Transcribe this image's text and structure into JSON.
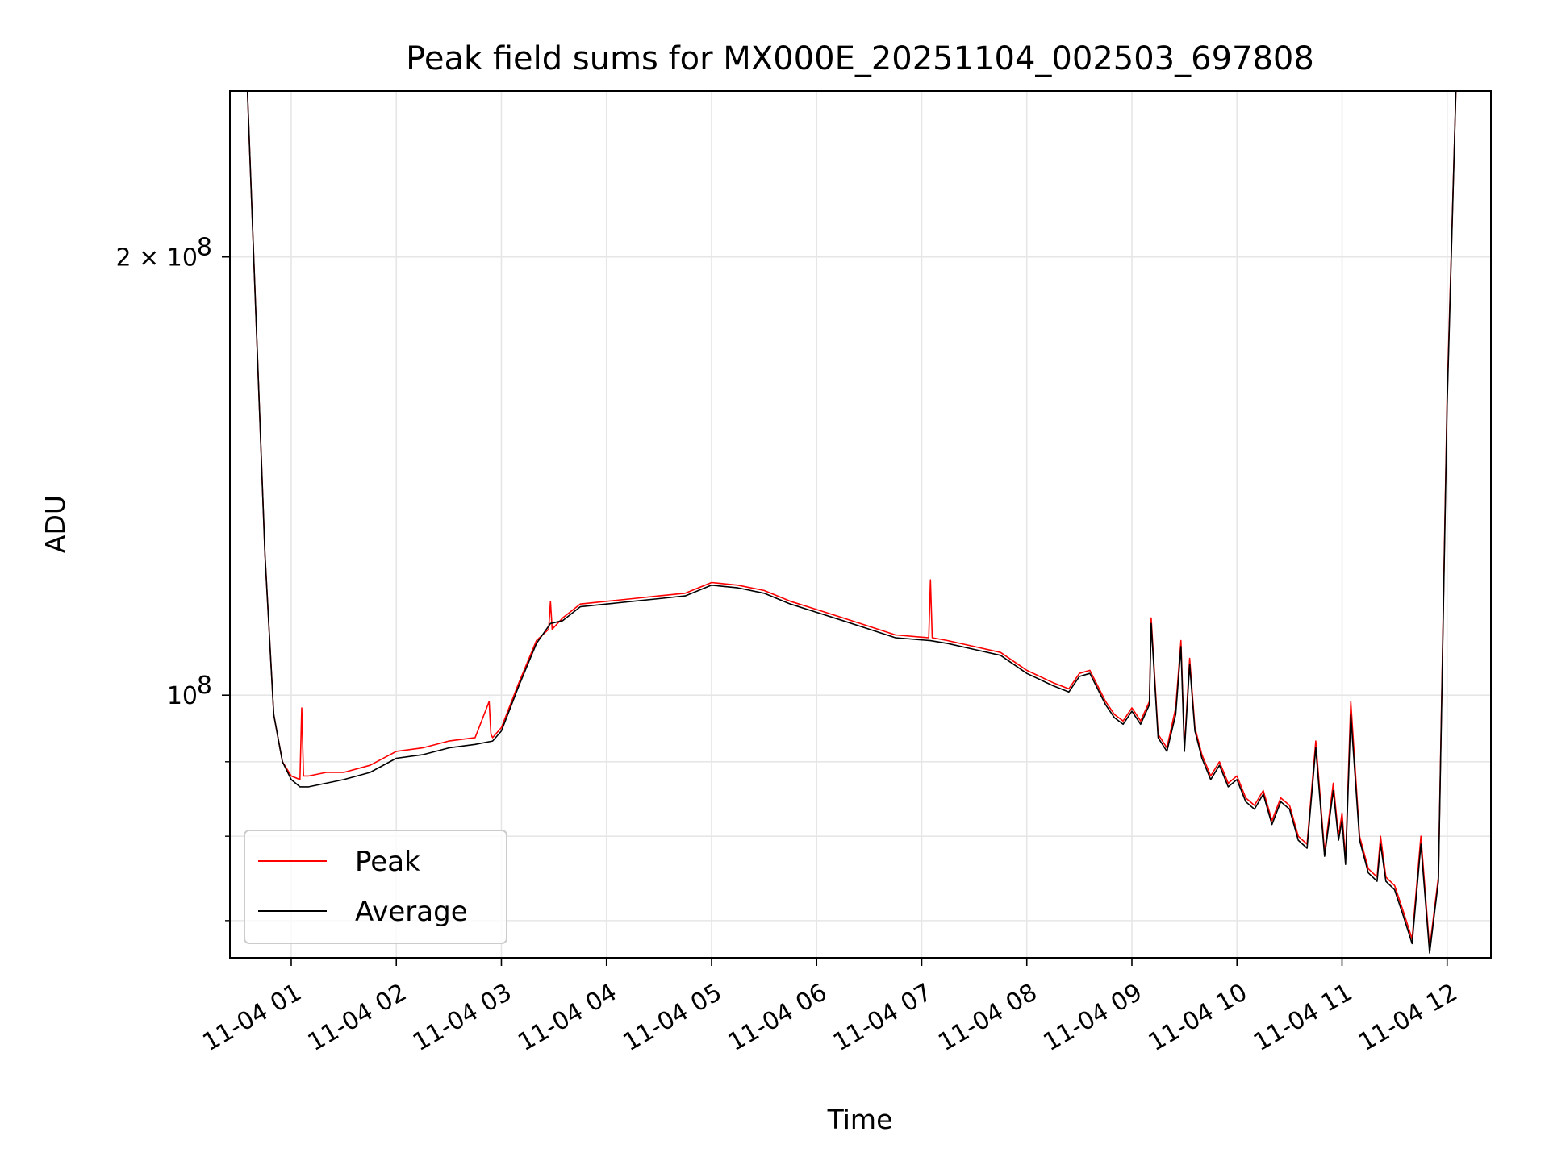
{
  "chart_data": {
    "type": "line",
    "title": "Peak field sums for MX000E_20251104_002503_697808",
    "xlabel": "Time",
    "ylabel": "ADU",
    "y_scale": "log",
    "ylim": [
      66000000,
      260000000
    ],
    "y_major_ticks": [
      {
        "value": 100000000,
        "base": "10",
        "exp": "8"
      },
      {
        "value": 200000000,
        "base": "2 × 10",
        "exp": "8"
      }
    ],
    "y_minor_ticks": [
      70000000,
      80000000,
      90000000
    ],
    "xlim": [
      "2025-11-04 00:25",
      "2025-11-04 12:25"
    ],
    "x_ticks": [
      {
        "value": "2025-11-04 01:00",
        "label": "11-04 01"
      },
      {
        "value": "2025-11-04 02:00",
        "label": "11-04 02"
      },
      {
        "value": "2025-11-04 03:00",
        "label": "11-04 03"
      },
      {
        "value": "2025-11-04 04:00",
        "label": "11-04 04"
      },
      {
        "value": "2025-11-04 05:00",
        "label": "11-04 05"
      },
      {
        "value": "2025-11-04 06:00",
        "label": "11-04 06"
      },
      {
        "value": "2025-11-04 07:00",
        "label": "11-04 07"
      },
      {
        "value": "2025-11-04 08:00",
        "label": "11-04 08"
      },
      {
        "value": "2025-11-04 09:00",
        "label": "11-04 09"
      },
      {
        "value": "2025-11-04 10:00",
        "label": "11-04 10"
      },
      {
        "value": "2025-11-04 11:00",
        "label": "11-04 11"
      },
      {
        "value": "2025-11-04 12:00",
        "label": "11-04 12"
      }
    ],
    "grid": true,
    "legend_position": "lower-left",
    "series": [
      {
        "name": "Peak",
        "color": "#ff0000",
        "x": [
          "2025-11-04 00:35",
          "2025-11-04 00:40",
          "2025-11-04 00:45",
          "2025-11-04 00:50",
          "2025-11-04 00:55",
          "2025-11-04 01:00",
          "2025-11-04 01:05",
          "2025-11-04 01:06",
          "2025-11-04 01:07",
          "2025-11-04 01:10",
          "2025-11-04 01:20",
          "2025-11-04 01:30",
          "2025-11-04 01:45",
          "2025-11-04 02:00",
          "2025-11-04 02:15",
          "2025-11-04 02:30",
          "2025-11-04 02:45",
          "2025-11-04 02:53",
          "2025-11-04 02:54",
          "2025-11-04 02:55",
          "2025-11-04 03:00",
          "2025-11-04 03:10",
          "2025-11-04 03:20",
          "2025-11-04 03:27",
          "2025-11-04 03:28",
          "2025-11-04 03:29",
          "2025-11-04 03:35",
          "2025-11-04 03:45",
          "2025-11-04 04:00",
          "2025-11-04 04:15",
          "2025-11-04 04:30",
          "2025-11-04 04:45",
          "2025-11-04 05:00",
          "2025-11-04 05:15",
          "2025-11-04 05:30",
          "2025-11-04 05:45",
          "2025-11-04 06:00",
          "2025-11-04 06:15",
          "2025-11-04 06:30",
          "2025-11-04 06:45",
          "2025-11-04 07:04",
          "2025-11-04 07:05",
          "2025-11-04 07:06",
          "2025-11-04 07:15",
          "2025-11-04 07:30",
          "2025-11-04 07:45",
          "2025-11-04 08:00",
          "2025-11-04 08:15",
          "2025-11-04 08:24",
          "2025-11-04 08:30",
          "2025-11-04 08:36",
          "2025-11-04 08:45",
          "2025-11-04 08:50",
          "2025-11-04 08:55",
          "2025-11-04 09:00",
          "2025-11-04 09:05",
          "2025-11-04 09:10",
          "2025-11-04 09:11",
          "2025-11-04 09:15",
          "2025-11-04 09:20",
          "2025-11-04 09:25",
          "2025-11-04 09:28",
          "2025-11-04 09:30",
          "2025-11-04 09:33",
          "2025-11-04 09:36",
          "2025-11-04 09:40",
          "2025-11-04 09:45",
          "2025-11-04 09:50",
          "2025-11-04 09:55",
          "2025-11-04 10:00",
          "2025-11-04 10:05",
          "2025-11-04 10:10",
          "2025-11-04 10:15",
          "2025-11-04 10:20",
          "2025-11-04 10:25",
          "2025-11-04 10:30",
          "2025-11-04 10:35",
          "2025-11-04 10:40",
          "2025-11-04 10:45",
          "2025-11-04 10:50",
          "2025-11-04 10:55",
          "2025-11-04 10:58",
          "2025-11-04 11:00",
          "2025-11-04 11:02",
          "2025-11-04 11:05",
          "2025-11-04 11:10",
          "2025-11-04 11:15",
          "2025-11-04 11:20",
          "2025-11-04 11:22",
          "2025-11-04 11:25",
          "2025-11-04 11:30",
          "2025-11-04 11:35",
          "2025-11-04 11:40",
          "2025-11-04 11:45",
          "2025-11-04 11:50",
          "2025-11-04 11:55",
          "2025-11-04 12:00",
          "2025-11-04 12:05"
        ],
        "y": [
          260000000,
          180000000,
          125000000,
          97000000,
          90000000,
          88000000,
          87500000,
          98000000,
          88000000,
          88000000,
          88500000,
          88500000,
          89500000,
          91500000,
          92000000,
          93000000,
          93500000,
          99000000,
          94000000,
          93500000,
          95000000,
          102000000,
          109000000,
          111000000,
          116000000,
          111000000,
          113000000,
          115500000,
          116000000,
          116500000,
          117000000,
          117500000,
          119500000,
          119000000,
          118000000,
          116000000,
          114500000,
          113000000,
          111500000,
          110000000,
          109500000,
          120000000,
          109500000,
          109000000,
          108000000,
          107000000,
          104000000,
          102000000,
          101000000,
          103500000,
          104000000,
          99000000,
          97000000,
          96000000,
          98000000,
          96000000,
          99000000,
          113000000,
          94000000,
          92000000,
          98000000,
          109000000,
          92000000,
          106000000,
          95000000,
          91000000,
          88000000,
          90000000,
          87000000,
          88000000,
          85000000,
          84000000,
          86000000,
          82000000,
          85000000,
          84000000,
          80000000,
          79000000,
          93000000,
          78000000,
          87000000,
          80000000,
          83000000,
          77000000,
          99000000,
          80000000,
          76000000,
          75000000,
          80000000,
          75000000,
          74000000,
          71000000,
          68000000,
          80000000,
          67000000,
          75000000,
          160000000,
          260000000
        ]
      },
      {
        "name": "Average",
        "color": "#000000",
        "x": [
          "2025-11-04 00:35",
          "2025-11-04 00:40",
          "2025-11-04 00:45",
          "2025-11-04 00:50",
          "2025-11-04 00:55",
          "2025-11-04 01:00",
          "2025-11-04 01:05",
          "2025-11-04 01:10",
          "2025-11-04 01:20",
          "2025-11-04 01:30",
          "2025-11-04 01:45",
          "2025-11-04 02:00",
          "2025-11-04 02:15",
          "2025-11-04 02:30",
          "2025-11-04 02:45",
          "2025-11-04 02:55",
          "2025-11-04 03:00",
          "2025-11-04 03:10",
          "2025-11-04 03:20",
          "2025-11-04 03:28",
          "2025-11-04 03:35",
          "2025-11-04 03:45",
          "2025-11-04 04:00",
          "2025-11-04 04:15",
          "2025-11-04 04:30",
          "2025-11-04 04:45",
          "2025-11-04 05:00",
          "2025-11-04 05:15",
          "2025-11-04 05:30",
          "2025-11-04 05:45",
          "2025-11-04 06:00",
          "2025-11-04 06:15",
          "2025-11-04 06:30",
          "2025-11-04 06:45",
          "2025-11-04 07:05",
          "2025-11-04 07:15",
          "2025-11-04 07:30",
          "2025-11-04 07:45",
          "2025-11-04 08:00",
          "2025-11-04 08:15",
          "2025-11-04 08:24",
          "2025-11-04 08:30",
          "2025-11-04 08:36",
          "2025-11-04 08:45",
          "2025-11-04 08:50",
          "2025-11-04 08:55",
          "2025-11-04 09:00",
          "2025-11-04 09:05",
          "2025-11-04 09:10",
          "2025-11-04 09:11",
          "2025-11-04 09:15",
          "2025-11-04 09:20",
          "2025-11-04 09:25",
          "2025-11-04 09:28",
          "2025-11-04 09:30",
          "2025-11-04 09:33",
          "2025-11-04 09:36",
          "2025-11-04 09:40",
          "2025-11-04 09:45",
          "2025-11-04 09:50",
          "2025-11-04 09:55",
          "2025-11-04 10:00",
          "2025-11-04 10:05",
          "2025-11-04 10:10",
          "2025-11-04 10:15",
          "2025-11-04 10:20",
          "2025-11-04 10:25",
          "2025-11-04 10:30",
          "2025-11-04 10:35",
          "2025-11-04 10:40",
          "2025-11-04 10:45",
          "2025-11-04 10:50",
          "2025-11-04 10:55",
          "2025-11-04 10:58",
          "2025-11-04 11:00",
          "2025-11-04 11:02",
          "2025-11-04 11:05",
          "2025-11-04 11:10",
          "2025-11-04 11:15",
          "2025-11-04 11:20",
          "2025-11-04 11:22",
          "2025-11-04 11:25",
          "2025-11-04 11:30",
          "2025-11-04 11:35",
          "2025-11-04 11:40",
          "2025-11-04 11:45",
          "2025-11-04 11:50",
          "2025-11-04 11:55",
          "2025-11-04 12:00",
          "2025-11-04 12:05"
        ],
        "y": [
          260000000,
          180000000,
          125000000,
          97000000,
          90000000,
          87500000,
          86500000,
          86500000,
          87000000,
          87500000,
          88500000,
          90500000,
          91000000,
          92000000,
          92500000,
          93000000,
          94500000,
          101500000,
          108500000,
          112000000,
          112500000,
          115000000,
          115500000,
          116000000,
          116500000,
          117000000,
          119000000,
          118500000,
          117500000,
          115500000,
          114000000,
          112500000,
          111000000,
          109500000,
          109000000,
          108500000,
          107500000,
          106500000,
          103500000,
          101500000,
          100500000,
          103000000,
          103500000,
          98500000,
          96500000,
          95500000,
          97500000,
          95500000,
          98500000,
          112000000,
          93500000,
          91500000,
          97000000,
          108000000,
          91500000,
          105000000,
          94500000,
          90500000,
          87500000,
          89500000,
          86500000,
          87500000,
          84500000,
          83500000,
          85500000,
          81500000,
          84500000,
          83500000,
          79500000,
          78500000,
          92000000,
          77500000,
          86000000,
          79500000,
          82000000,
          76500000,
          97000000,
          79500000,
          75500000,
          74500000,
          79000000,
          74500000,
          73500000,
          70500000,
          67500000,
          79000000,
          66500000,
          74500000,
          158000000,
          260000000
        ]
      }
    ]
  }
}
